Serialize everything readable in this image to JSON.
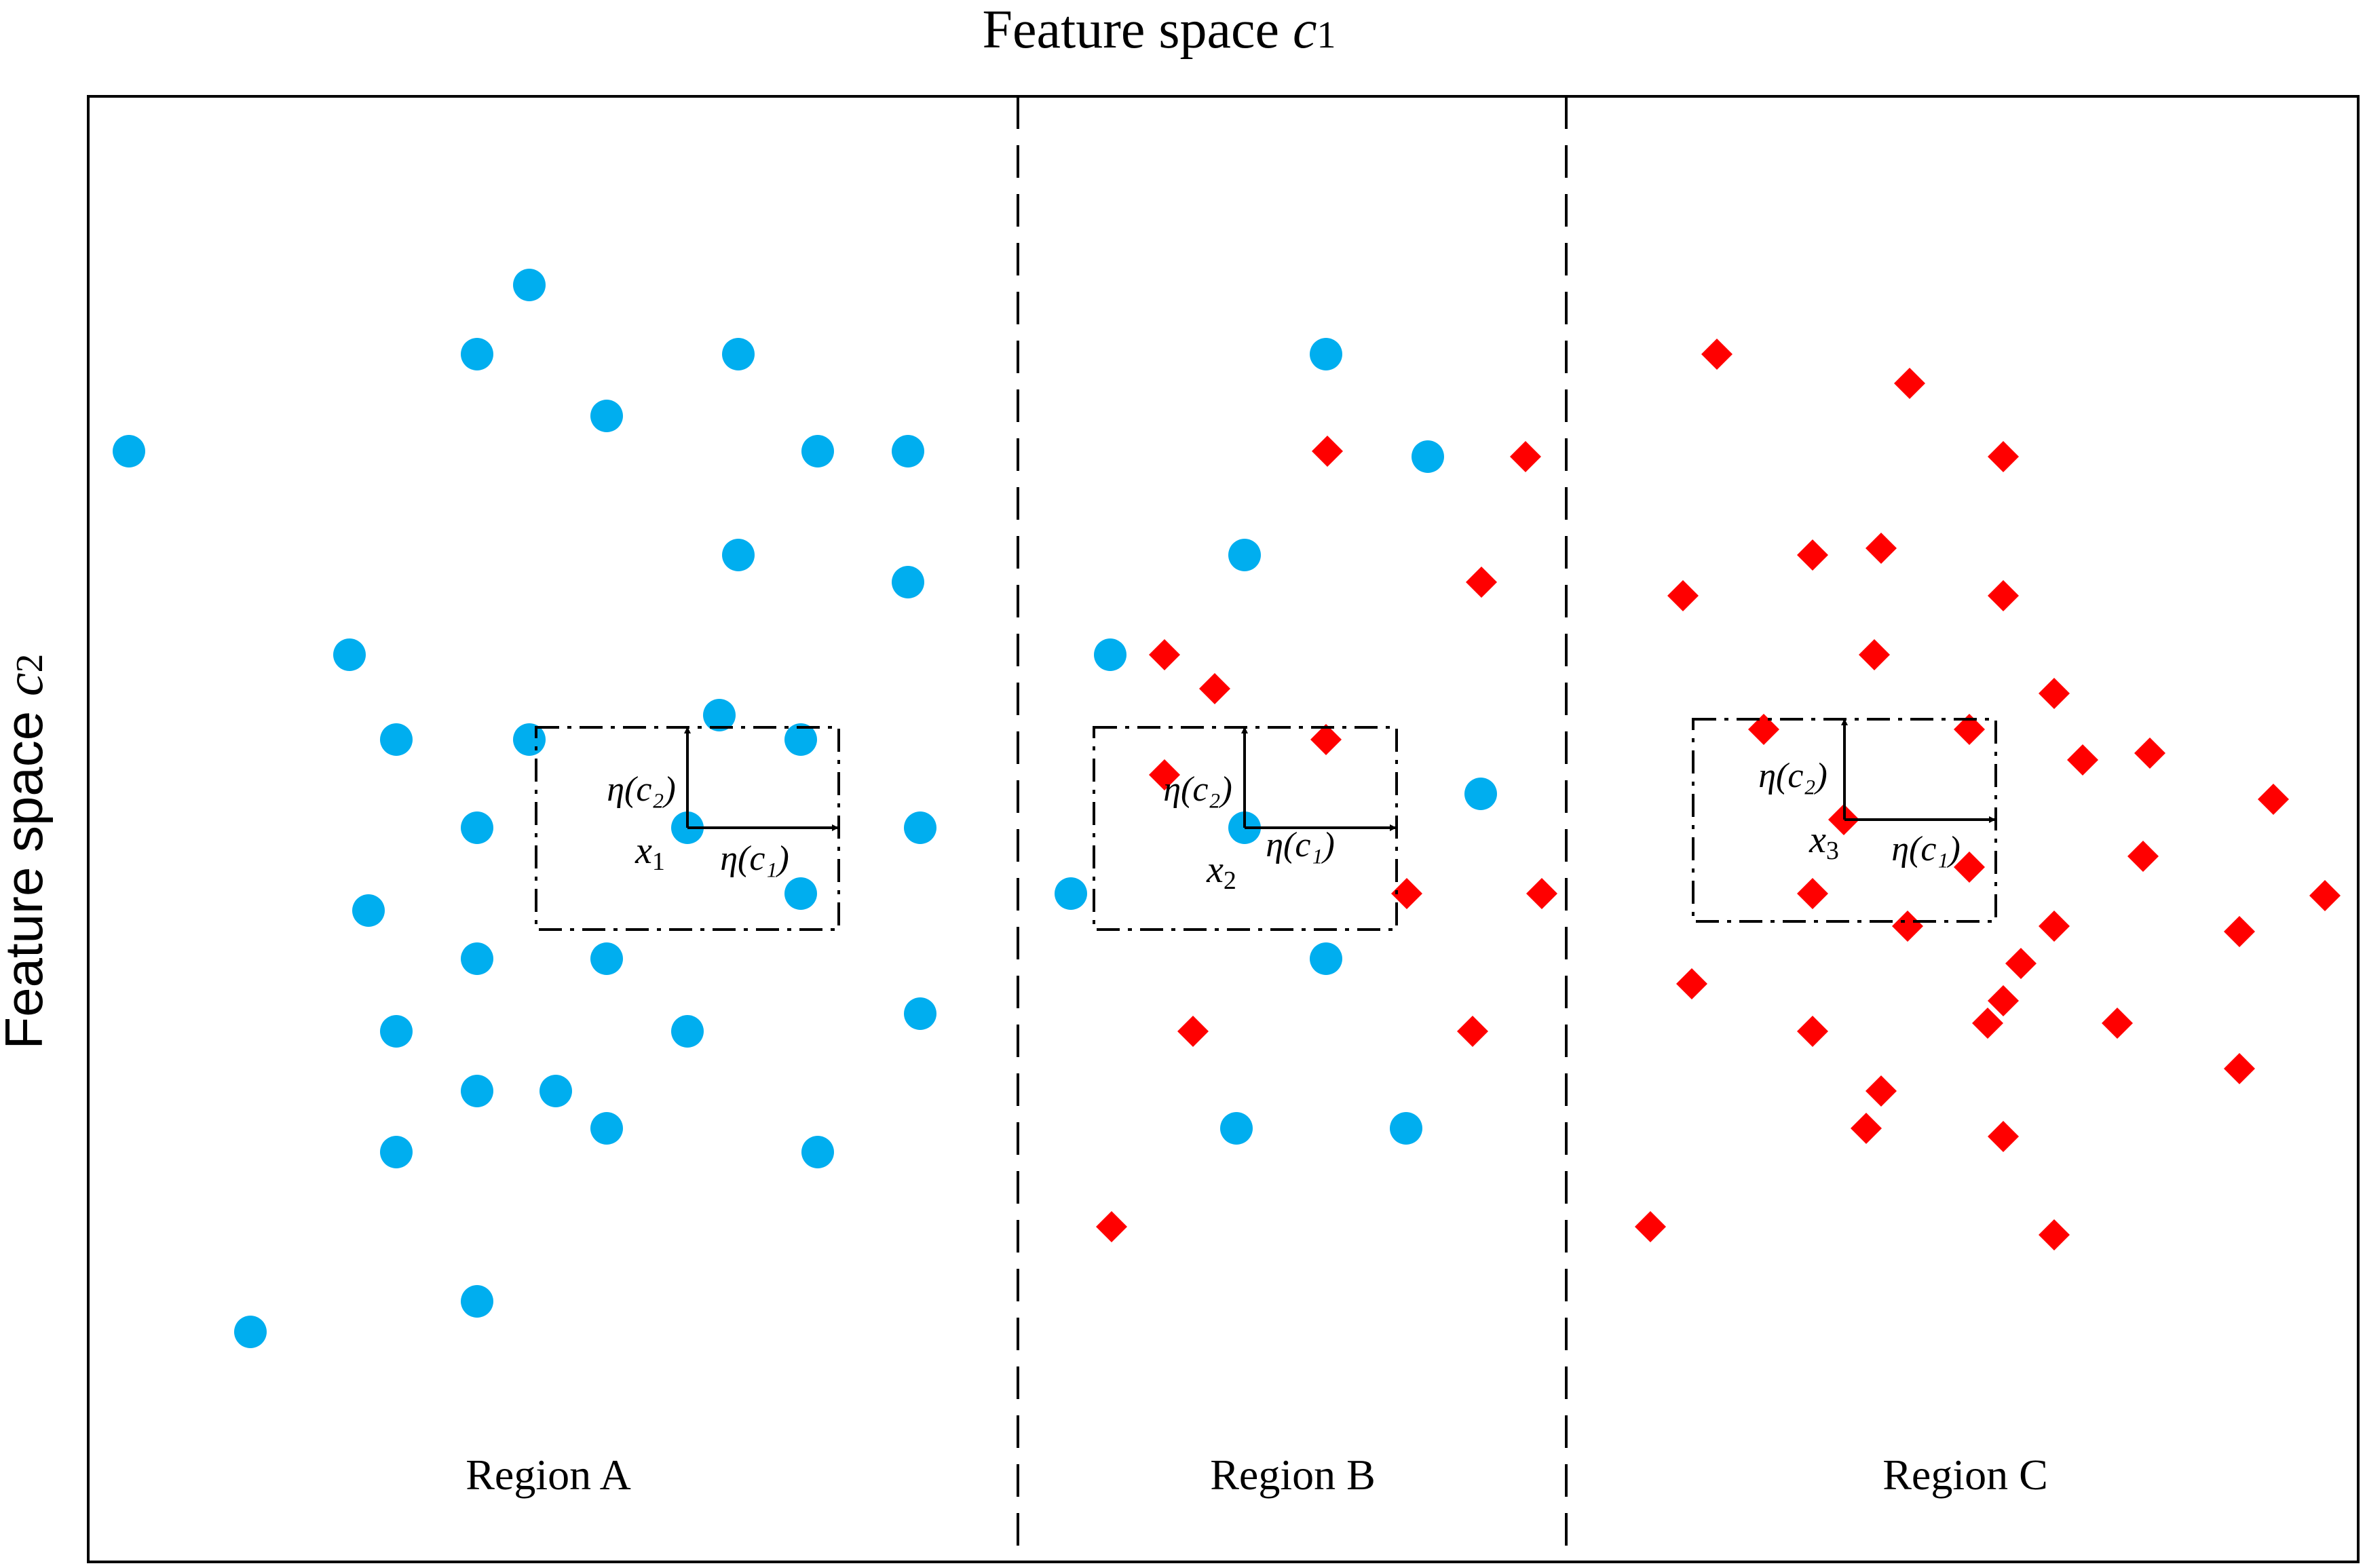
{
  "titles": {
    "top_text": "Feature space ",
    "top_var": "c",
    "top_sub": "1",
    "left_text": "Feature space ",
    "left_var": "c",
    "left_sub": "2"
  },
  "regions": [
    {
      "label": "Region A"
    },
    {
      "label": "Region B"
    },
    {
      "label": "Region C"
    }
  ],
  "neighborhoods": [
    {
      "point": "x",
      "point_sub": "1",
      "eta_c2": "η(c₂)",
      "eta_c1": "η(c₁)"
    },
    {
      "point": "x",
      "point_sub": "2",
      "eta_c2": "η(c₂)",
      "eta_c1": "η(c₁)"
    },
    {
      "point": "x",
      "point_sub": "3",
      "eta_c2": "η(c₂)",
      "eta_c1": "η(c₁)"
    }
  ],
  "colors": {
    "class_circle": "#00AEEF",
    "class_diamond": "#FF0000",
    "line": "#000000"
  },
  "marker_shapes": {
    "class_circle": "circle",
    "class_diamond": "diamond"
  }
}
